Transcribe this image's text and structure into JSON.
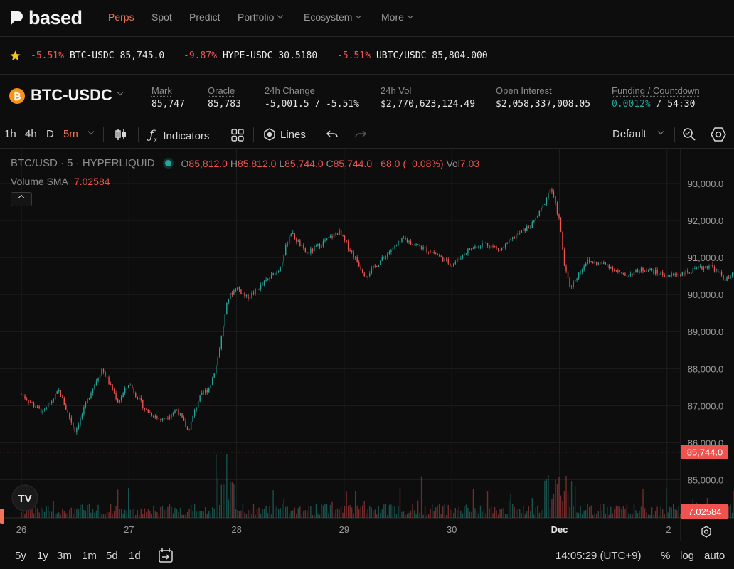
{
  "brand": {
    "name": "based"
  },
  "nav": {
    "items": [
      {
        "label": "Perps",
        "active": true,
        "has_menu": false
      },
      {
        "label": "Spot",
        "active": false,
        "has_menu": false
      },
      {
        "label": "Predict",
        "active": false,
        "has_menu": false
      },
      {
        "label": "Portfolio",
        "active": false,
        "has_menu": true
      },
      {
        "label": "Ecosystem",
        "active": false,
        "has_menu": true
      },
      {
        "label": "More",
        "active": false,
        "has_menu": true
      }
    ]
  },
  "ticker": [
    {
      "change": "-5.51%",
      "symbol": "BTC-USDC",
      "price": "85,745.0"
    },
    {
      "change": "-9.87%",
      "symbol": "HYPE-USDC",
      "price": "30.5180"
    },
    {
      "change": "-5.51%",
      "symbol": "UBTC/USDC",
      "price": "85,804.000"
    }
  ],
  "market": {
    "pair": "BTC-USDC",
    "mark_label": "Mark",
    "mark": "85,747",
    "oracle_label": "Oracle",
    "oracle": "85,783",
    "change_label": "24h Change",
    "change": "-5,001.5 / -5.51%",
    "vol_label": "24h Vol",
    "vol": "$2,770,623,124.49",
    "oi_label": "Open Interest",
    "oi": "$2,058,337,008.05",
    "funding_label": "Funding / Countdown",
    "funding": "0.0012%",
    "countdown": "/ 54:30"
  },
  "toolbar": {
    "intervals": [
      "1h",
      "4h",
      "D",
      "5m"
    ],
    "selected_interval": "5m",
    "indicators_label": "Indicators",
    "lines_label": "Lines",
    "layout_label": "Default"
  },
  "legend": {
    "symbol": "BTC/USD · 5 · HYPERLIQUID",
    "o_label": "O",
    "open": "85,812.0",
    "h_label": "H",
    "high": "85,812.0",
    "l_label": "L",
    "low": "85,744.0",
    "c_label": "C",
    "close": "85,744.0",
    "change": "−68.0 (−0.08%)",
    "vol_label": "Vol",
    "vol": "7.03",
    "sma_label": "Volume SMA",
    "sma": "7.02584"
  },
  "colors": {
    "up": "#26a69a",
    "down": "#ef5350",
    "accent": "#f0745a",
    "background": "#0d0d0d"
  },
  "chart_data": {
    "type": "candlestick",
    "y_ticks": [
      "93,000.0",
      "92,000.0",
      "91,000.0",
      "90,000.0",
      "89,000.0",
      "88,000.0",
      "87,000.0",
      "86,000.0",
      "85,000.0"
    ],
    "ylim": [
      84400,
      93400
    ],
    "x_ticks": [
      "26",
      "27",
      "28",
      "29",
      "30",
      "Dec",
      "2"
    ],
    "last_price_label": "85,744.0",
    "last_price": 85744,
    "volume_sma_label": "7.02584",
    "price_path": [
      {
        "t": 0.0,
        "p": 87300
      },
      {
        "t": 0.2,
        "p": 86800
      },
      {
        "t": 0.35,
        "p": 87400
      },
      {
        "t": 0.5,
        "p": 86300
      },
      {
        "t": 0.65,
        "p": 87400
      },
      {
        "t": 0.75,
        "p": 88000
      },
      {
        "t": 0.9,
        "p": 87100
      },
      {
        "t": 1.0,
        "p": 87600
      },
      {
        "t": 1.15,
        "p": 86900
      },
      {
        "t": 1.3,
        "p": 86600
      },
      {
        "t": 1.45,
        "p": 86900
      },
      {
        "t": 1.55,
        "p": 86300
      },
      {
        "t": 1.65,
        "p": 87200
      },
      {
        "t": 1.75,
        "p": 87500
      },
      {
        "t": 1.82,
        "p": 88200
      },
      {
        "t": 1.92,
        "p": 89900
      },
      {
        "t": 2.0,
        "p": 90200
      },
      {
        "t": 2.1,
        "p": 89900
      },
      {
        "t": 2.25,
        "p": 90300
      },
      {
        "t": 2.4,
        "p": 90700
      },
      {
        "t": 2.5,
        "p": 91700
      },
      {
        "t": 2.65,
        "p": 91100
      },
      {
        "t": 2.8,
        "p": 91400
      },
      {
        "t": 2.95,
        "p": 91700
      },
      {
        "t": 3.1,
        "p": 91000
      },
      {
        "t": 3.2,
        "p": 90500
      },
      {
        "t": 3.4,
        "p": 91100
      },
      {
        "t": 3.55,
        "p": 91500
      },
      {
        "t": 3.7,
        "p": 91300
      },
      {
        "t": 3.85,
        "p": 91100
      },
      {
        "t": 4.0,
        "p": 90800
      },
      {
        "t": 4.15,
        "p": 91200
      },
      {
        "t": 4.3,
        "p": 91400
      },
      {
        "t": 4.45,
        "p": 91200
      },
      {
        "t": 4.6,
        "p": 91600
      },
      {
        "t": 4.75,
        "p": 91900
      },
      {
        "t": 4.85,
        "p": 92400
      },
      {
        "t": 4.92,
        "p": 92900
      },
      {
        "t": 5.0,
        "p": 92000
      },
      {
        "t": 5.05,
        "p": 90700
      },
      {
        "t": 5.1,
        "p": 90200
      },
      {
        "t": 5.25,
        "p": 90900
      },
      {
        "t": 5.45,
        "p": 90800
      },
      {
        "t": 5.6,
        "p": 90500
      },
      {
        "t": 5.8,
        "p": 90700
      },
      {
        "t": 6.0,
        "p": 90500
      },
      {
        "t": 6.2,
        "p": 90600
      },
      {
        "t": 6.4,
        "p": 90800
      },
      {
        "t": 6.55,
        "p": 90400
      },
      {
        "t": 6.75,
        "p": 90800
      },
      {
        "t": 6.9,
        "p": 90900
      },
      {
        "t": 7.1,
        "p": 90700
      },
      {
        "t": 7.3,
        "p": 90800
      },
      {
        "t": 7.5,
        "p": 91000
      },
      {
        "t": 7.7,
        "p": 91300
      },
      {
        "t": 7.88,
        "p": 91900
      },
      {
        "t": 8.0,
        "p": 91400
      },
      {
        "t": 8.15,
        "p": 91700
      },
      {
        "t": 8.3,
        "p": 91200
      },
      {
        "t": 8.45,
        "p": 91000
      },
      {
        "t": 8.55,
        "p": 90600
      },
      {
        "t": 8.6,
        "p": 89600
      },
      {
        "t": 8.65,
        "p": 88200
      },
      {
        "t": 8.7,
        "p": 87300
      },
      {
        "t": 8.8,
        "p": 86800
      },
      {
        "t": 8.9,
        "p": 86300
      },
      {
        "t": 9.0,
        "p": 85744
      }
    ]
  },
  "bottom": {
    "ranges": [
      "5y",
      "1y",
      "3m",
      "1m",
      "5d",
      "1d"
    ],
    "time": "14:05:29 (UTC+9)",
    "percent": "%",
    "log": "log",
    "auto": "auto"
  }
}
